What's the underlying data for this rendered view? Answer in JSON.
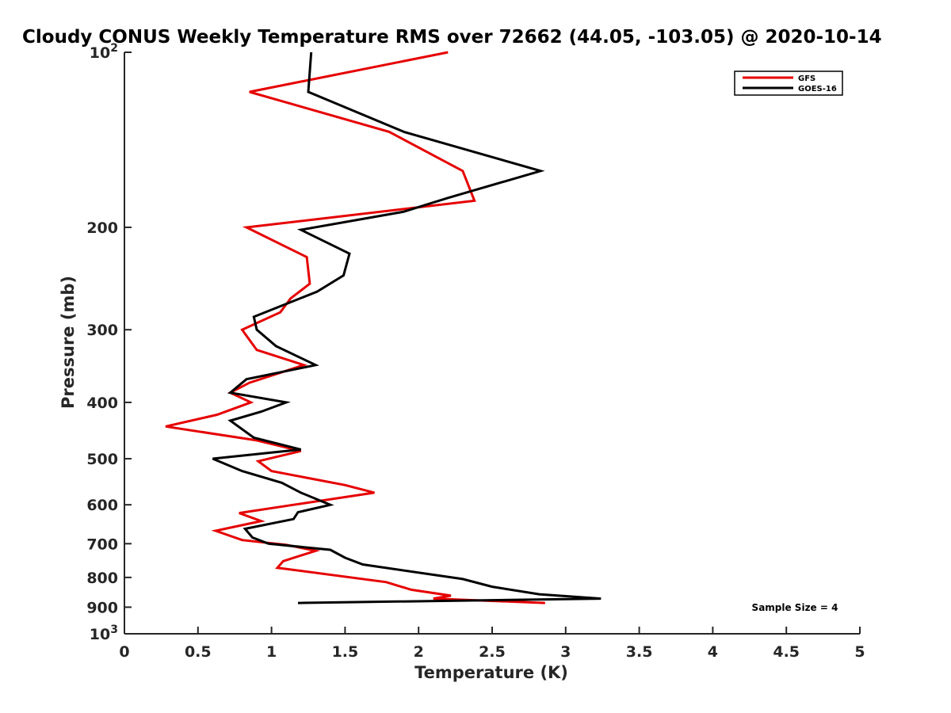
{
  "chart_data": {
    "type": "line",
    "title": "Cloudy CONUS Weekly Temperature RMS over 72662 (44.05, -103.05) @ 2020-10-14",
    "xlabel": "Temperature (K)",
    "ylabel": "Pressure (mb)",
    "xlim": [
      0,
      5
    ],
    "ylim": [
      100,
      1000
    ],
    "y_scale": "log",
    "y_reversed": true,
    "x_ticks": [
      {
        "value": 0,
        "label": "0"
      },
      {
        "value": 0.5,
        "label": "0.5"
      },
      {
        "value": 1,
        "label": "1"
      },
      {
        "value": 1.5,
        "label": "1.5"
      },
      {
        "value": 2,
        "label": "2"
      },
      {
        "value": 2.5,
        "label": "2.5"
      },
      {
        "value": 3,
        "label": "3"
      },
      {
        "value": 3.5,
        "label": "3.5"
      },
      {
        "value": 4,
        "label": "4"
      },
      {
        "value": 4.5,
        "label": "4.5"
      },
      {
        "value": 5,
        "label": "5"
      }
    ],
    "y_ticks": [
      {
        "value": 100,
        "base": "10",
        "exp": "2"
      },
      {
        "value": 200,
        "label": "200"
      },
      {
        "value": 300,
        "label": "300"
      },
      {
        "value": 400,
        "label": "400"
      },
      {
        "value": 500,
        "label": "500"
      },
      {
        "value": 600,
        "label": "600"
      },
      {
        "value": 700,
        "label": "700"
      },
      {
        "value": 800,
        "label": "800"
      },
      {
        "value": 900,
        "label": "900"
      },
      {
        "value": 1000,
        "base": "10",
        "exp": "3"
      }
    ],
    "grid": false,
    "legend_position": "top-right",
    "annotation": "Sample Size = 4",
    "series": [
      {
        "name": "GFS",
        "color": "#e60000",
        "points": [
          {
            "x": 2.2,
            "y": 100
          },
          {
            "x": 0.85,
            "y": 117
          },
          {
            "x": 1.8,
            "y": 137
          },
          {
            "x": 2.3,
            "y": 160
          },
          {
            "x": 2.38,
            "y": 180
          },
          {
            "x": 0.83,
            "y": 200
          },
          {
            "x": 1.24,
            "y": 225
          },
          {
            "x": 1.26,
            "y": 250
          },
          {
            "x": 1.13,
            "y": 265
          },
          {
            "x": 1.06,
            "y": 280
          },
          {
            "x": 0.8,
            "y": 300
          },
          {
            "x": 0.9,
            "y": 325
          },
          {
            "x": 1.22,
            "y": 345
          },
          {
            "x": 0.85,
            "y": 370
          },
          {
            "x": 0.72,
            "y": 385
          },
          {
            "x": 0.86,
            "y": 400
          },
          {
            "x": 0.63,
            "y": 420
          },
          {
            "x": 0.28,
            "y": 440
          },
          {
            "x": 0.9,
            "y": 465
          },
          {
            "x": 1.2,
            "y": 485
          },
          {
            "x": 0.91,
            "y": 505
          },
          {
            "x": 1.0,
            "y": 525
          },
          {
            "x": 1.5,
            "y": 555
          },
          {
            "x": 1.7,
            "y": 572
          },
          {
            "x": 1.15,
            "y": 600
          },
          {
            "x": 0.78,
            "y": 620
          },
          {
            "x": 0.93,
            "y": 640
          },
          {
            "x": 0.62,
            "y": 665
          },
          {
            "x": 0.8,
            "y": 690
          },
          {
            "x": 1.1,
            "y": 703
          },
          {
            "x": 1.3,
            "y": 720
          },
          {
            "x": 1.08,
            "y": 750
          },
          {
            "x": 1.04,
            "y": 770
          },
          {
            "x": 1.78,
            "y": 815
          },
          {
            "x": 1.95,
            "y": 840
          },
          {
            "x": 2.22,
            "y": 860
          },
          {
            "x": 2.1,
            "y": 870
          },
          {
            "x": 2.86,
            "y": 885
          }
        ]
      },
      {
        "name": "GOES-16",
        "color": "#000000",
        "points": [
          {
            "x": 1.27,
            "y": 100
          },
          {
            "x": 1.25,
            "y": 117
          },
          {
            "x": 1.9,
            "y": 137
          },
          {
            "x": 2.83,
            "y": 160
          },
          {
            "x": 2.2,
            "y": 178
          },
          {
            "x": 1.9,
            "y": 188
          },
          {
            "x": 1.2,
            "y": 202
          },
          {
            "x": 1.53,
            "y": 222
          },
          {
            "x": 1.49,
            "y": 242
          },
          {
            "x": 1.31,
            "y": 258
          },
          {
            "x": 0.88,
            "y": 285
          },
          {
            "x": 0.9,
            "y": 300
          },
          {
            "x": 1.03,
            "y": 320
          },
          {
            "x": 1.3,
            "y": 345
          },
          {
            "x": 0.83,
            "y": 365
          },
          {
            "x": 0.72,
            "y": 385
          },
          {
            "x": 1.1,
            "y": 400
          },
          {
            "x": 0.93,
            "y": 415
          },
          {
            "x": 0.72,
            "y": 430
          },
          {
            "x": 0.88,
            "y": 460
          },
          {
            "x": 1.2,
            "y": 482
          },
          {
            "x": 0.6,
            "y": 500
          },
          {
            "x": 0.8,
            "y": 525
          },
          {
            "x": 1.07,
            "y": 550
          },
          {
            "x": 1.2,
            "y": 572
          },
          {
            "x": 1.4,
            "y": 600
          },
          {
            "x": 1.18,
            "y": 618
          },
          {
            "x": 1.15,
            "y": 635
          },
          {
            "x": 0.82,
            "y": 660
          },
          {
            "x": 0.87,
            "y": 683
          },
          {
            "x": 0.98,
            "y": 700
          },
          {
            "x": 1.4,
            "y": 717
          },
          {
            "x": 1.5,
            "y": 740
          },
          {
            "x": 1.62,
            "y": 760
          },
          {
            "x": 2.3,
            "y": 805
          },
          {
            "x": 2.5,
            "y": 830
          },
          {
            "x": 2.82,
            "y": 855
          },
          {
            "x": 3.24,
            "y": 870
          },
          {
            "x": 1.18,
            "y": 885
          }
        ]
      }
    ]
  }
}
